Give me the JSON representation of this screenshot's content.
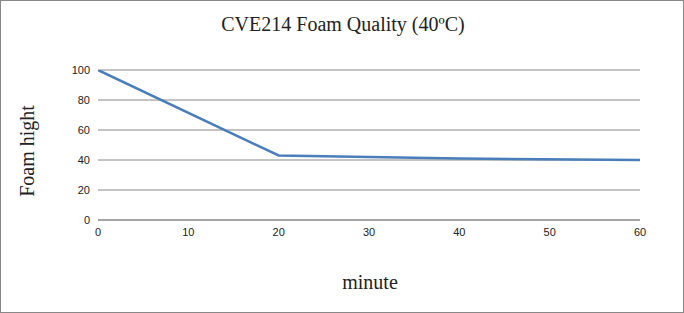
{
  "chart_data": {
    "type": "line",
    "title": "CVE214 Foam Quality (40ºC)",
    "x_label": "minute",
    "y_label": "Foam hight",
    "x": [
      0,
      20,
      40,
      60
    ],
    "values": [
      100,
      43,
      41,
      40
    ],
    "color": "#4a7ebb",
    "xlim": [
      0,
      60
    ],
    "xticks": [
      0,
      10,
      20,
      30,
      40,
      50,
      60
    ],
    "ylim": [
      0,
      100
    ],
    "yticks": [
      0,
      20,
      40,
      60,
      80,
      100
    ],
    "grid": true
  }
}
